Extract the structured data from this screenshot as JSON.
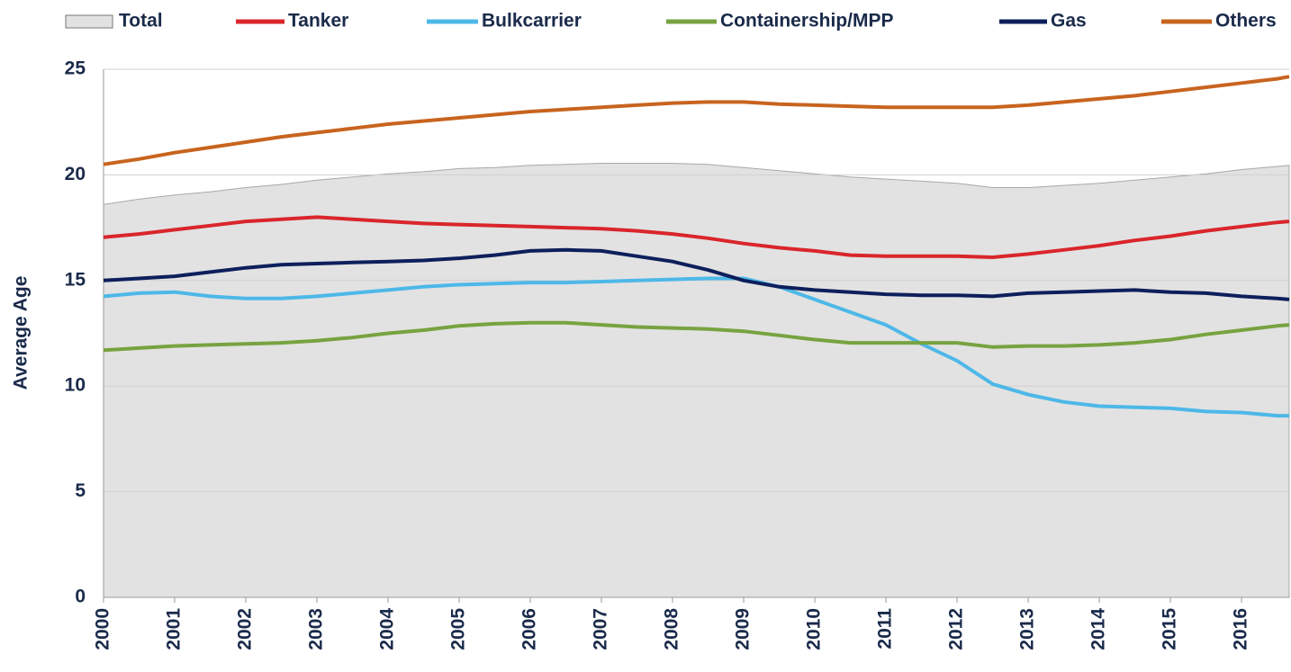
{
  "chart_data": {
    "type": "line",
    "ylabel": "Average Age",
    "x": [
      2000,
      2000.5,
      2001,
      2001.5,
      2002,
      2002.5,
      2003,
      2003.5,
      2004,
      2004.5,
      2005,
      2005.5,
      2006,
      2006.5,
      2007,
      2007.5,
      2008,
      2008.5,
      2009,
      2009.5,
      2010,
      2010.5,
      2011,
      2011.5,
      2012,
      2012.5,
      2013,
      2013.5,
      2014,
      2014.5,
      2015,
      2015.5,
      2016,
      2016.5,
      2016.67
    ],
    "xlim": [
      2000,
      2016.67
    ],
    "xticks": [
      2000,
      2001,
      2002,
      2003,
      2004,
      2005,
      2006,
      2007,
      2008,
      2009,
      2010,
      2011,
      2012,
      2013,
      2014,
      2015,
      2016
    ],
    "ylim": [
      0,
      25
    ],
    "yticks": [
      0,
      5,
      10,
      15,
      20,
      25
    ],
    "grid": true,
    "legend": "top",
    "series": [
      {
        "name": "Total",
        "style": "area",
        "color": "#e2e2e2",
        "values": [
          18.6,
          18.85,
          19.05,
          19.2,
          19.4,
          19.55,
          19.75,
          19.9,
          20.05,
          20.15,
          20.3,
          20.35,
          20.45,
          20.5,
          20.55,
          20.55,
          20.55,
          20.5,
          20.35,
          20.2,
          20.05,
          19.9,
          19.8,
          19.7,
          19.6,
          19.4,
          19.4,
          19.5,
          19.6,
          19.75,
          19.9,
          20.05,
          20.25,
          20.4,
          20.45
        ]
      },
      {
        "name": "Tanker",
        "style": "line",
        "color": "#d9262b",
        "values": [
          17.05,
          17.2,
          17.4,
          17.6,
          17.8,
          17.9,
          18.0,
          17.9,
          17.8,
          17.7,
          17.65,
          17.6,
          17.55,
          17.5,
          17.45,
          17.35,
          17.2,
          17.0,
          16.75,
          16.55,
          16.4,
          16.2,
          16.15,
          16.15,
          16.15,
          16.1,
          16.25,
          16.45,
          16.65,
          16.9,
          17.1,
          17.35,
          17.55,
          17.75,
          17.8
        ]
      },
      {
        "name": "Bulkcarrier",
        "style": "line",
        "color": "#4db8e8",
        "values": [
          14.25,
          14.4,
          14.45,
          14.25,
          14.15,
          14.15,
          14.25,
          14.4,
          14.55,
          14.7,
          14.8,
          14.85,
          14.9,
          14.9,
          14.95,
          15.0,
          15.05,
          15.1,
          15.1,
          14.7,
          14.1,
          13.5,
          12.9,
          12.0,
          11.2,
          10.1,
          9.6,
          9.25,
          9.05,
          9.0,
          8.95,
          8.8,
          8.75,
          8.6,
          8.6
        ]
      },
      {
        "name": "Containership/MPP",
        "style": "line",
        "color": "#77a340",
        "values": [
          11.7,
          11.8,
          11.9,
          11.95,
          12.0,
          12.05,
          12.15,
          12.3,
          12.5,
          12.65,
          12.85,
          12.95,
          13.0,
          13.0,
          12.9,
          12.8,
          12.75,
          12.7,
          12.6,
          12.4,
          12.2,
          12.05,
          12.05,
          12.05,
          12.05,
          11.85,
          11.9,
          11.9,
          11.95,
          12.05,
          12.2,
          12.45,
          12.65,
          12.85,
          12.9
        ]
      },
      {
        "name": "Gas",
        "style": "line",
        "color": "#0d1f5c",
        "values": [
          15.0,
          15.1,
          15.2,
          15.4,
          15.6,
          15.75,
          15.8,
          15.85,
          15.9,
          15.95,
          16.05,
          16.2,
          16.4,
          16.45,
          16.4,
          16.15,
          15.9,
          15.5,
          15.0,
          14.7,
          14.55,
          14.45,
          14.35,
          14.3,
          14.3,
          14.25,
          14.4,
          14.45,
          14.5,
          14.55,
          14.45,
          14.4,
          14.25,
          14.15,
          14.1
        ]
      },
      {
        "name": "Others",
        "style": "line",
        "color": "#c8641f",
        "values": [
          20.5,
          20.75,
          21.05,
          21.3,
          21.55,
          21.8,
          22.0,
          22.2,
          22.4,
          22.55,
          22.7,
          22.85,
          23.0,
          23.1,
          23.2,
          23.3,
          23.4,
          23.45,
          23.45,
          23.35,
          23.3,
          23.25,
          23.2,
          23.2,
          23.2,
          23.2,
          23.3,
          23.45,
          23.6,
          23.75,
          23.95,
          24.15,
          24.35,
          24.55,
          24.65
        ]
      }
    ]
  }
}
